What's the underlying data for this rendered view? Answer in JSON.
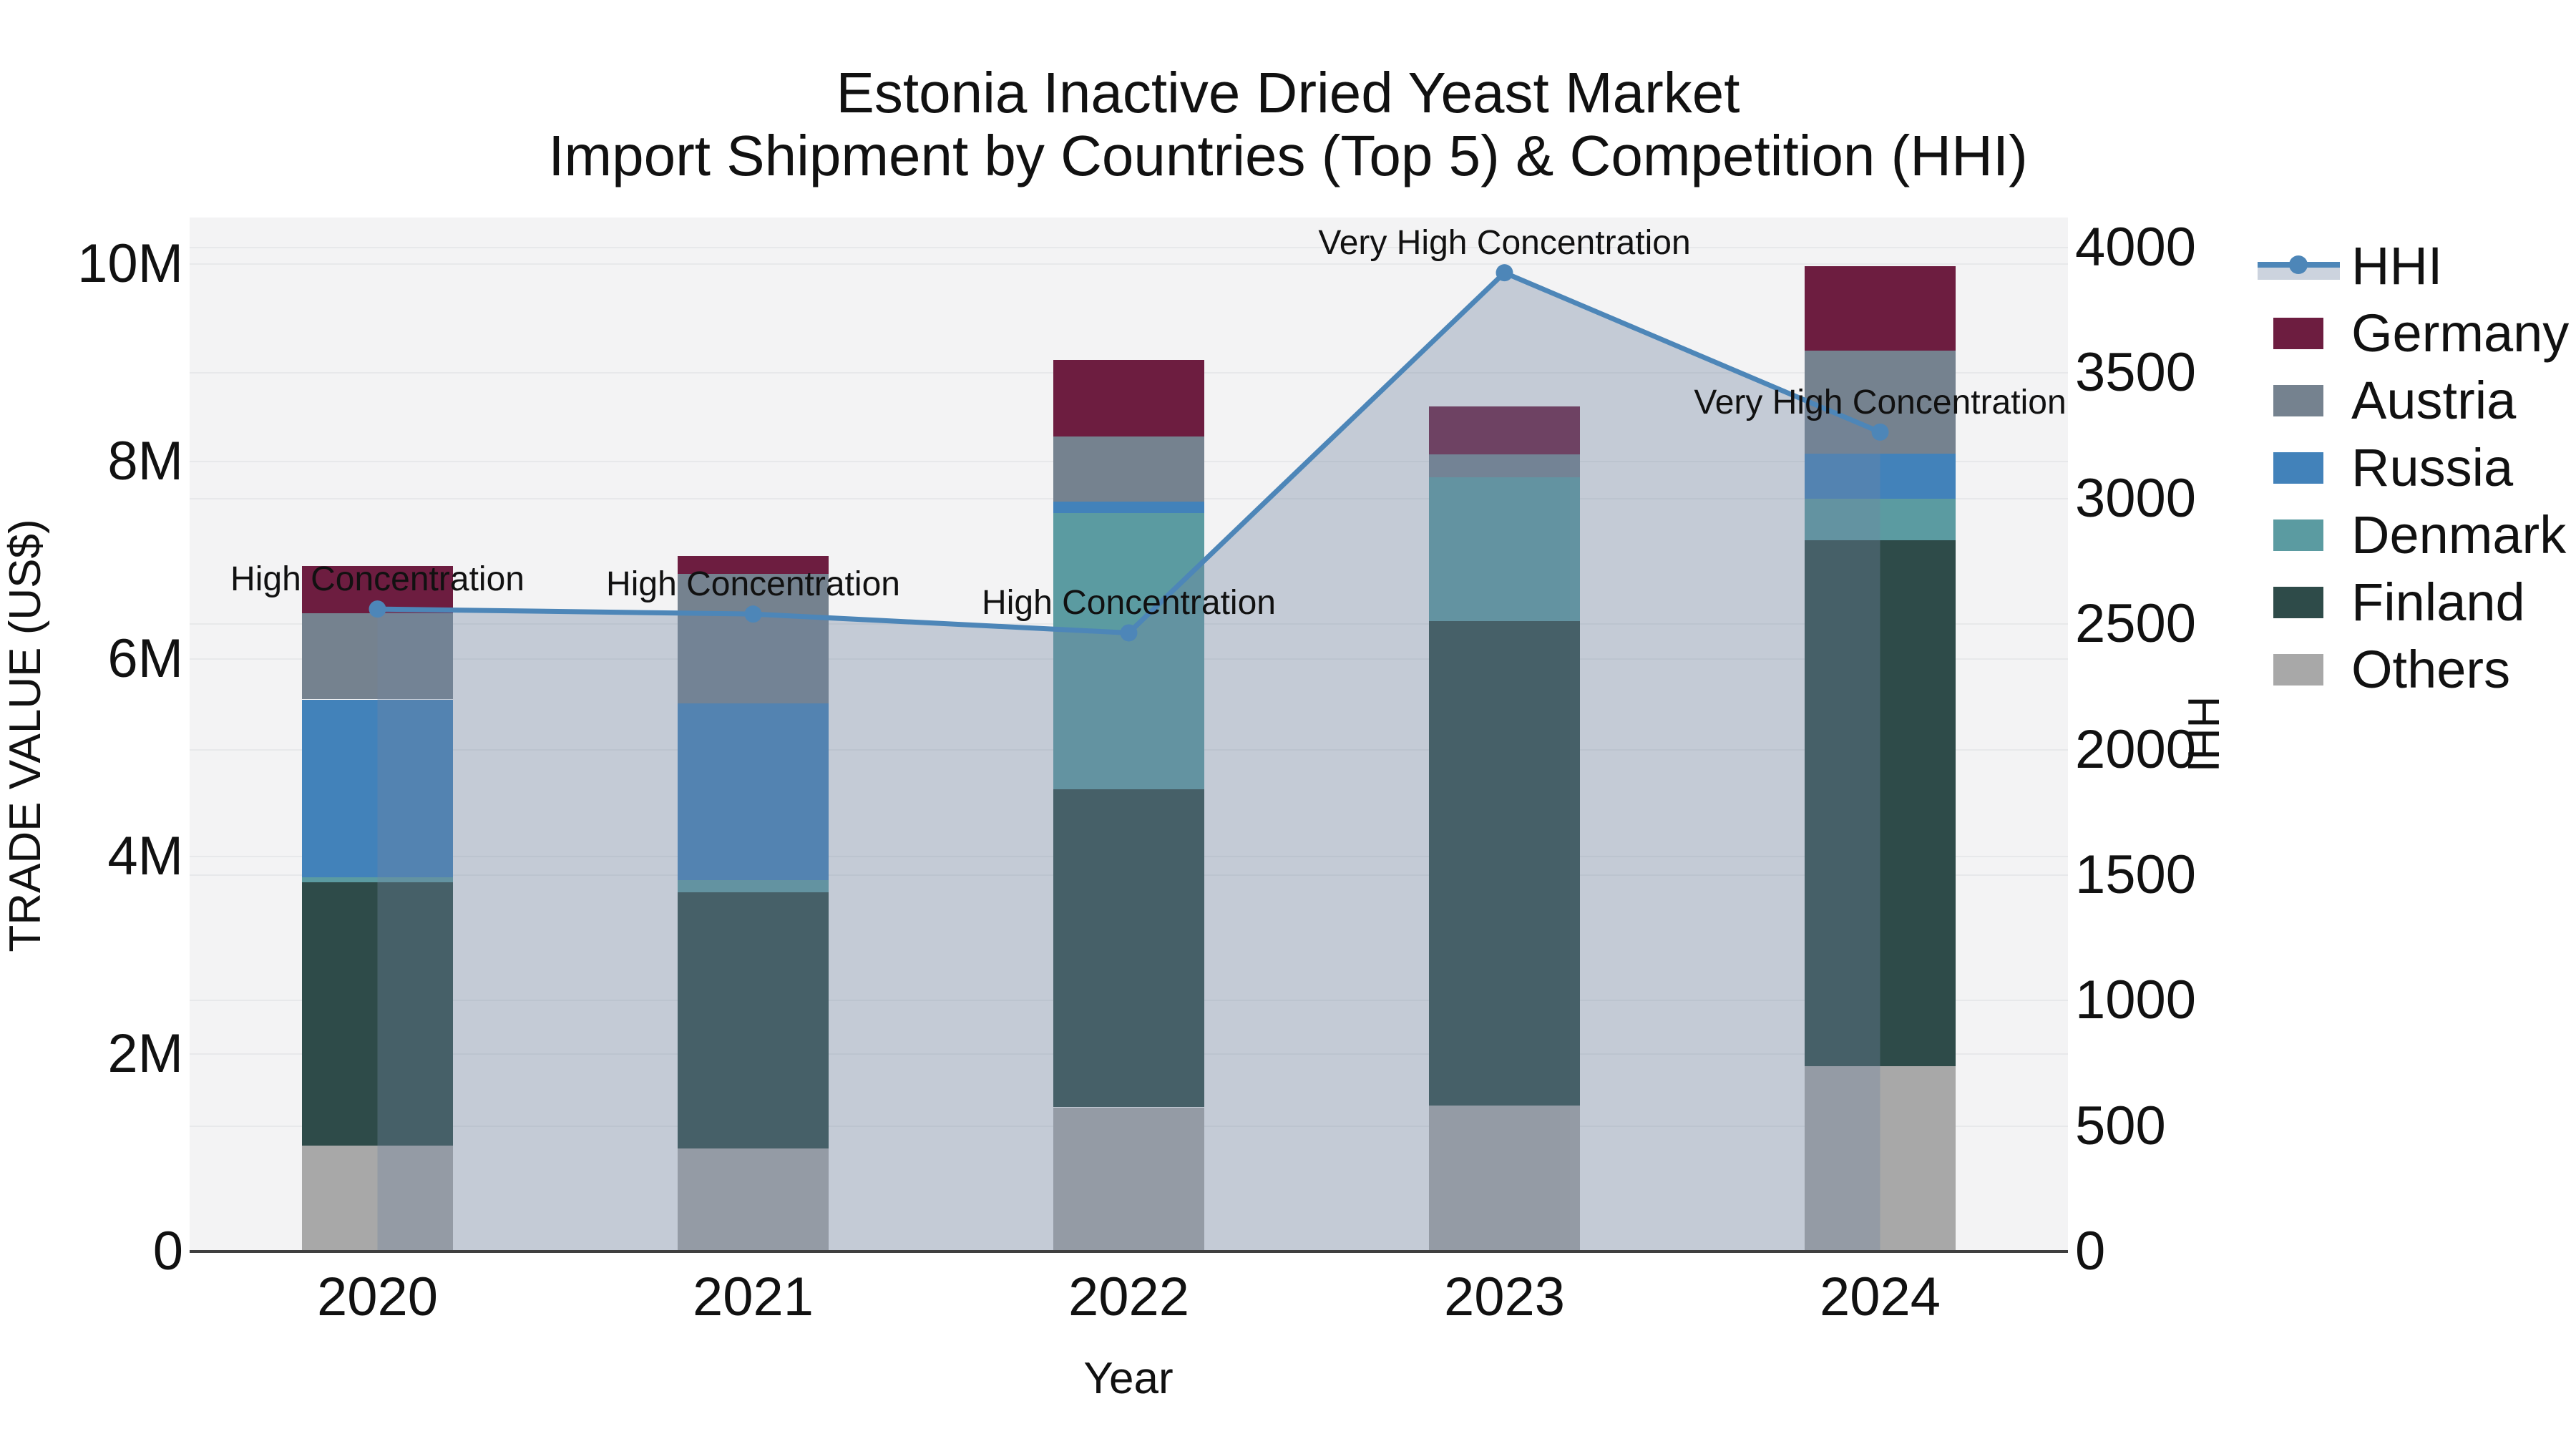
{
  "title": {
    "line1": "Estonia Inactive Dried Yeast Market",
    "line2": "Import Shipment by Countries (Top 5) & Competition (HHI)"
  },
  "axes": {
    "x": {
      "title": "Year"
    },
    "y_left": {
      "title": "TRADE VALUE (US$)"
    },
    "y_right": {
      "title": "HHI"
    }
  },
  "legend": {
    "items": [
      {
        "label": "HHI",
        "kind": "line",
        "color": "#4d86b8"
      },
      {
        "label": "Germany",
        "kind": "swatch",
        "color": "#6d1d40"
      },
      {
        "label": "Austria",
        "kind": "swatch",
        "color": "#75828f"
      },
      {
        "label": "Russia",
        "kind": "swatch",
        "color": "#4282ba"
      },
      {
        "label": "Denmark",
        "kind": "swatch",
        "color": "#5b9ba1"
      },
      {
        "label": "Finland",
        "kind": "swatch",
        "color": "#2e4b49"
      },
      {
        "label": "Others",
        "kind": "swatch",
        "color": "#a8a8a8"
      }
    ]
  },
  "chart_data": {
    "type": "bar+line",
    "title": "Estonia Inactive Dried Yeast Market — Import Shipment by Countries (Top 5) & Competition (HHI)",
    "categories": [
      "2020",
      "2021",
      "2022",
      "2023",
      "2024"
    ],
    "bar_value_unit": "million US$",
    "stack_order_bottom_to_top": [
      "Others",
      "Finland",
      "Denmark",
      "Russia",
      "Austria",
      "Germany"
    ],
    "series": [
      {
        "name": "Others",
        "color": "#a8a8a8",
        "values": [
          1.07,
          1.04,
          1.46,
          1.48,
          1.88
        ]
      },
      {
        "name": "Finland",
        "color": "#2e4b49",
        "values": [
          2.67,
          2.6,
          3.22,
          4.9,
          5.32
        ]
      },
      {
        "name": "Denmark",
        "color": "#5b9ba1",
        "values": [
          0.05,
          0.12,
          2.8,
          1.46,
          0.42
        ]
      },
      {
        "name": "Russia",
        "color": "#4282ba",
        "values": [
          1.8,
          1.79,
          0.11,
          0.0,
          0.46
        ]
      },
      {
        "name": "Austria",
        "color": "#75828f",
        "values": [
          0.87,
          1.31,
          0.66,
          0.23,
          1.04
        ]
      },
      {
        "name": "Germany",
        "color": "#6d1d40",
        "values": [
          0.48,
          0.18,
          0.78,
          0.49,
          0.86
        ]
      }
    ],
    "bar_totals": [
      6.94,
      7.04,
      9.03,
      8.56,
      9.98
    ],
    "line": {
      "name": "HHI",
      "color": "#4d86b8",
      "fill_color": "rgba(114,132,161,0.36)",
      "values": [
        2560,
        2540,
        2465,
        3900,
        3265
      ]
    },
    "annotations": [
      {
        "category": "2020",
        "text": "High Concentration"
      },
      {
        "category": "2021",
        "text": "High Concentration"
      },
      {
        "category": "2022",
        "text": "High Concentration"
      },
      {
        "category": "2023",
        "text": "Very High Concentration"
      },
      {
        "category": "2024",
        "text": "Very High Concentration"
      }
    ],
    "xlabel": "Year",
    "ylabel_left": "TRADE VALUE (US$)",
    "ylabel_right": "HHI",
    "ylim_left": [
      0,
      10470000
    ],
    "ylim_right": [
      0,
      4120
    ],
    "left_ticks": {
      "labels": [
        "0",
        "2M",
        "4M",
        "6M",
        "8M",
        "10M"
      ],
      "values": [
        0,
        2,
        4,
        6,
        8,
        10
      ]
    },
    "right_ticks": {
      "labels": [
        "0",
        "500",
        "1000",
        "1500",
        "2000",
        "2500",
        "3000",
        "3500",
        "4000"
      ],
      "values": [
        0,
        500,
        1000,
        1500,
        2000,
        2500,
        3000,
        3500,
        4000
      ]
    },
    "grid": true,
    "legend_position": "right"
  }
}
